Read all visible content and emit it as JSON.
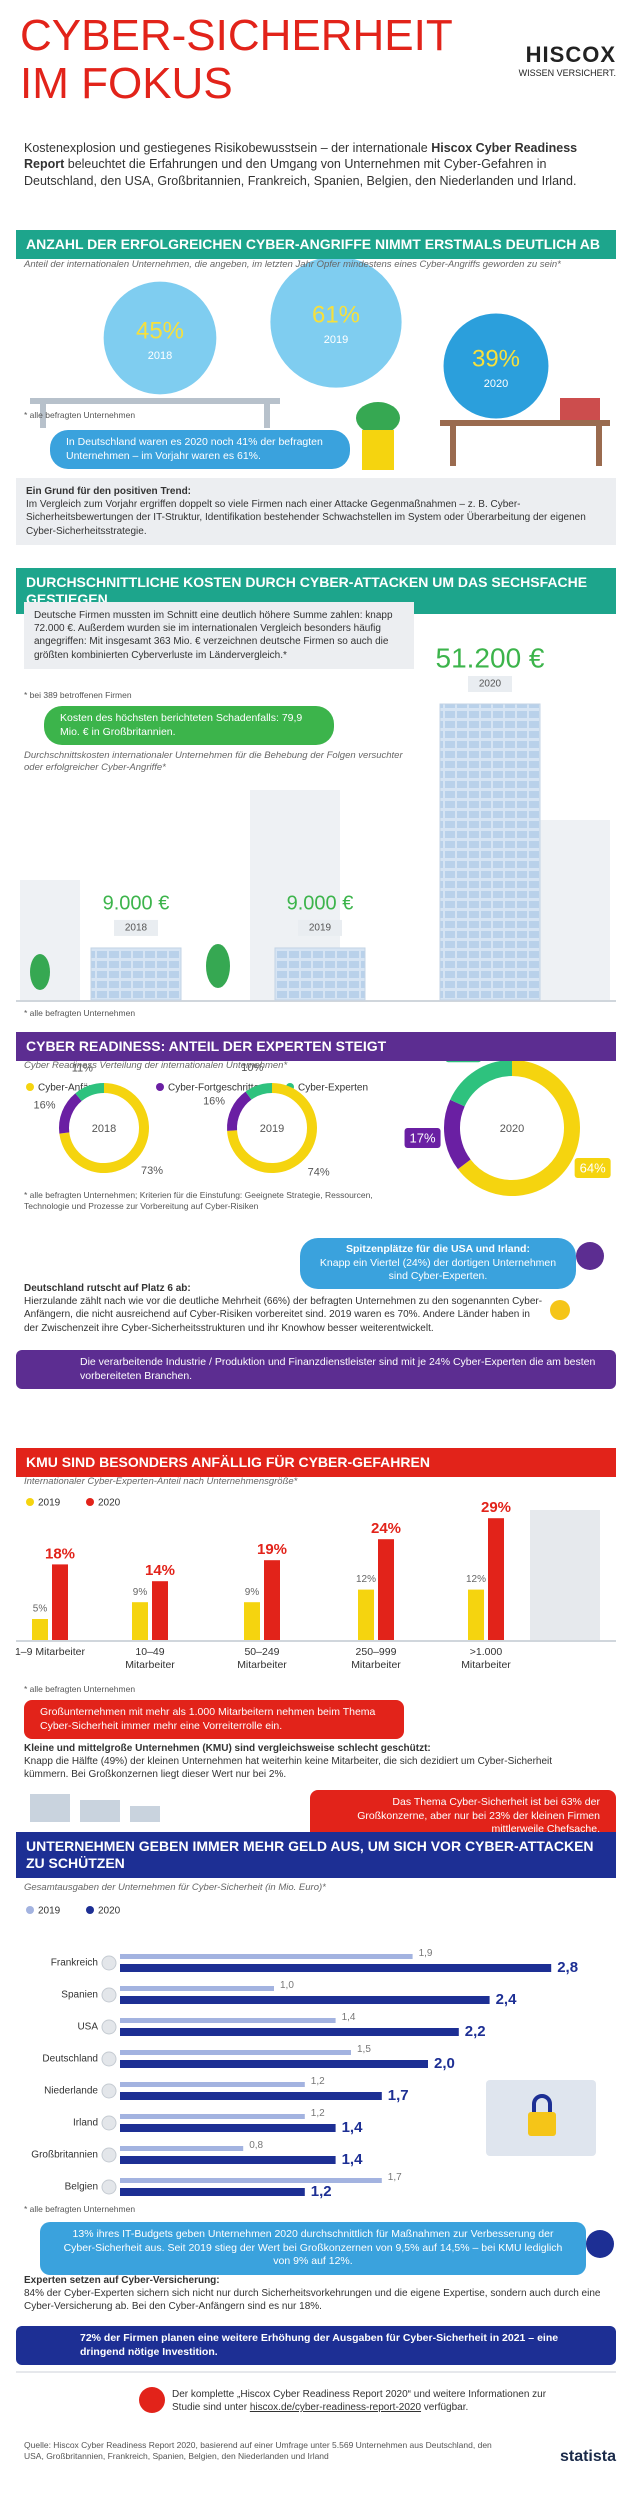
{
  "header": {
    "title": [
      "CYBER-SICHERHEIT",
      "IM FOKUS"
    ],
    "logo": "HISCOX",
    "logo_tagline": "WISSEN VERSICHERT.",
    "intro": [
      "Kostenexplosion und gestiegenes Risikobewusstsein – der internationale ",
      "Hiscox Cyber Readiness Report",
      " beleuchtet die Erfahrungen und den Umgang von Unternehmen mit Cyber-Gefahren in Deutschland, den USA, Großbritannien, Frankreich, Spanien, Belgien, den Niederlanden und Irland."
    ]
  },
  "sections": [
    {
      "title": "ANZAHL DER ERFOLGREICHEN CYBER-ANGRIFFE NIMMT ERSTMALS DEUTLICH AB",
      "callout": "In Deutschland waren es 2020 noch 41% der befragten Unternehmen – im Vorjahr waren es 61%.",
      "note_heading": "Ein Grund für den positiven Trend:",
      "note": "Im Vergleich zum Vorjahr ergriffen doppelt so viele Firmen nach einer Attacke Gegenmaßnahmen – z. B. Cyber-Sicherheitsbewertungen der IT-Struktur, Identifikation bestehender Schwachstellen im System oder Überarbeitung der eigenen Cyber-Sicherheitsstrategie."
    },
    {
      "title": "DURCHSCHNITTLICHE KOSTEN DURCH CYBER-ATTACKEN UM DAS SECHSFACHE GESTIEGEN",
      "note": "Deutsche Firmen mussten im Schnitt eine deutlich höhere Summe zahlen: knapp 72.000 €. Außerdem wurden sie im internationalen Vergleich besonders häufig angegriffen: Mit insgesamt 363 Mio. € verzeichnen deutsche Firmen so auch die größten kombinierten Cyberverluste im Ländervergleich.*",
      "note_footnote": "* bei 389 betroffenen Firmen",
      "callout": "Kosten des höchsten berichteten Schadenfalls: 79,9 Mio. € in Großbritannien."
    },
    {
      "title": "CYBER READINESS: ANTEIL DER EXPERTEN STEIGT",
      "callout_heading": "Spitzenplätze für die USA und Irland:",
      "callout": "Knapp ein Viertel (24%) der dortigen Unternehmen sind Cyber-Experten.",
      "note_heading": "Deutschland rutscht auf Platz 6 ab:",
      "note": "Hierzulande zählt nach wie vor die deutliche Mehrheit (66%) der befragten Unternehmen zu den sogenannten Cyber-Anfängern, die nicht ausreichend auf Cyber-Risiken vorbereitet sind. 2019 waren es 70%. Andere Länder haben in der Zwischenzeit ihre Cyber-Sicherheitsstrukturen und ihr Knowhow besser weiterentwickelt.",
      "callout_2": "Die verarbeitende Industrie / Produktion und Finanzdienstleister sind mit je 24% Cyber-Experten die am besten vorbereiteten Branchen."
    },
    {
      "title": "KMU SIND BESONDERS ANFÄLLIG FÜR CYBER-GEFAHREN",
      "callout": "Großunternehmen mit mehr als 1.000 Mitarbeitern nehmen beim Thema Cyber-Sicherheit immer mehr eine Vorreiterrolle ein.",
      "note_heading": "Kleine und mittelgroße Unternehmen (KMU) sind vergleichsweise schlecht geschützt:",
      "note": "Knapp die Hälfte (49%) der kleinen Unternehmen hat weiterhin keine Mitarbeiter, die sich dezidiert um Cyber-Sicherheit kümmern. Bei Großkonzernen liegt dieser Wert nur bei 2%.",
      "callout_2": "Das Thema Cyber-Sicherheit ist bei 63% der Großkonzerne, aber nur bei 23% der kleinen Firmen mittlerweile Chefsache."
    },
    {
      "title": "UNTERNEHMEN GEBEN IMMER MEHR GELD AUS, UM SICH VOR CYBER-ATTACKEN ZU SCHÜTZEN",
      "callout": "13% ihres IT-Budgets geben Unternehmen 2020 durchschnittlich für Maßnahmen zur Verbesserung der Cyber-Sicherheit aus. Seit 2019 stieg der Wert bei Großkonzernen von 9,5% auf 14,5% – bei KMU lediglich von 9% auf 12%.",
      "note_heading": "Experten setzen auf Cyber-Versicherung:",
      "note": "84% der Cyber-Experten sichern sich nicht nur durch Sicherheitsvorkehrungen und die eigene Expertise, sondern auch durch eine Cyber-Versicherung ab. Bei den Cyber-Anfängern sind es nur 18%.",
      "callout_2": "72% der Firmen planen eine weitere Erhöhung der Ausgaben für Cyber-Sicherheit in 2021 – eine dringend nötige Investition."
    }
  ],
  "chart_data": [
    {
      "type": "bubble",
      "subtitle": "Anteil der internationalen Unternehmen, die angeben, im letzten Jahr Opfer mindestens eines Cyber-Angriffs geworden zu sein*",
      "categories": [
        "2018",
        "2019",
        "2020"
      ],
      "values": [
        45,
        61,
        39
      ],
      "value_labels": [
        "45%",
        "61%",
        "39%"
      ],
      "colors": [
        "#7fcdf0",
        "#7fcdf0",
        "#2b9fdc"
      ],
      "label_color": "#f7e03c",
      "footnote": "* alle befragten Unternehmen"
    },
    {
      "type": "building",
      "subtitle": "Durchschnittskosten internationaler Unternehmen für die Behebung der Folgen versuchter oder erfolgreicher Cyber-Angriffe*",
      "categories": [
        "2018",
        "2019",
        "2020"
      ],
      "values": [
        9000,
        9000,
        51200
      ],
      "value_labels": [
        "9.000 €",
        "9.000 €",
        "51.200 €"
      ],
      "label_color": "#3cb44b",
      "footnote": "* alle befragten Unternehmen"
    },
    {
      "type": "donut",
      "subtitle": "Cyber Readiness Verteilung der internationalen Unternehmen*",
      "categories": [
        "2018",
        "2019",
        "2020"
      ],
      "series": [
        {
          "name": "Cyber-Anfänger",
          "color": "#f5d40f",
          "values": [
            73,
            74,
            64
          ],
          "value_labels": [
            "73%",
            "74%",
            "64%"
          ]
        },
        {
          "name": "Cyber-Fortgeschrittene",
          "color": "#6a1fa3",
          "values": [
            16,
            16,
            17
          ],
          "value_labels": [
            "16%",
            "16%",
            "17%"
          ]
        },
        {
          "name": "Cyber-Experten",
          "color": "#2ec27e",
          "values": [
            11,
            10,
            18
          ],
          "value_labels": [
            "11%",
            "10%",
            "18%"
          ]
        }
      ],
      "footnote": "* alle befragten Unternehmen; Kriterien für die Einstufung: Geeignete Strategie, Ressourcen, Technologie und Prozesse zur Vorbereitung auf Cyber-Risiken"
    },
    {
      "type": "bar",
      "subtitle": "Internationaler Cyber-Experten-Anteil nach Unternehmensgröße*",
      "categories": [
        "1–9 Mitarbeiter",
        "10–49 Mitarbeiter",
        "50–249 Mitarbeiter",
        "250–999 Mitarbeiter",
        ">1.000 Mitarbeiter"
      ],
      "series": [
        {
          "name": "2019",
          "color": "#f5d40f",
          "values": [
            5,
            9,
            9,
            12,
            12
          ],
          "value_labels": [
            "5%",
            "9%",
            "9%",
            "12%",
            "12%"
          ]
        },
        {
          "name": "2020",
          "color": "#e2231a",
          "values": [
            18,
            14,
            19,
            24,
            29
          ],
          "value_labels": [
            "18%",
            "14%",
            "19%",
            "24%",
            "29%"
          ]
        }
      ],
      "footnote": "* alle befragten Unternehmen"
    },
    {
      "type": "hbar",
      "subtitle": "Gesamtausgaben der Unternehmen für Cyber-Sicherheit (in Mio. Euro)*",
      "categories": [
        "Frankreich",
        "Spanien",
        "USA",
        "Deutschland",
        "Niederlande",
        "Irland",
        "Großbritannien",
        "Belgien"
      ],
      "series": [
        {
          "name": "2019",
          "color": "#a3b3e0",
          "values": [
            1.9,
            1.0,
            1.4,
            1.5,
            1.2,
            1.2,
            0.8,
            1.7
          ],
          "value_labels": [
            "1,9",
            "1,0",
            "1,4",
            "1,5",
            "1,2",
            "1,2",
            "0,8",
            "1,7"
          ]
        },
        {
          "name": "2020",
          "color": "#1d2f94",
          "values": [
            2.8,
            2.4,
            2.2,
            2.0,
            1.7,
            1.4,
            1.4,
            1.2
          ],
          "value_labels": [
            "2,8",
            "2,4",
            "2,2",
            "2,0",
            "1,7",
            "1,4",
            "1,4",
            "1,2"
          ]
        }
      ],
      "footnote": "* alle befragten Unternehmen"
    }
  ],
  "footer": {
    "text": "Der komplette „Hiscox Cyber Readiness Report 2020“ und weitere Informationen zur Studie sind unter ",
    "link": "hiscox.de/cyber-readiness-report-2020",
    "text_end": " verfügbar.",
    "source": "Quelle: Hiscox Cyber Readiness Report 2020, basierend auf einer Umfrage unter 5.569 Unternehmen aus Deutschland, den USA, Großbritannien, Frankreich, Spanien, Belgien, den Niederlanden und Irland",
    "brand": "statista"
  }
}
